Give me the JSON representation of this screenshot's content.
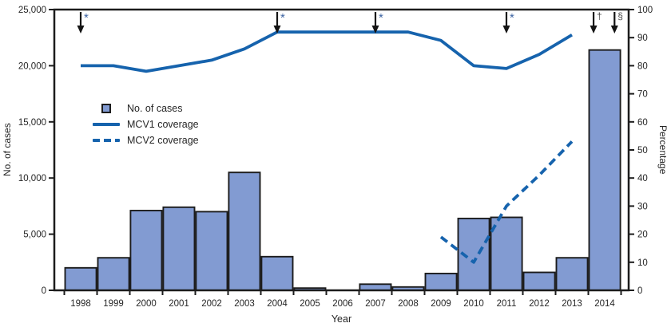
{
  "chart_data": {
    "type": "bar",
    "subtype": "combo-bar-line",
    "categories": [
      "1998",
      "1999",
      "2000",
      "2001",
      "2002",
      "2003",
      "2004",
      "2005",
      "2006",
      "2007",
      "2008",
      "2009",
      "2010",
      "2011",
      "2012",
      "2013",
      "2014"
    ],
    "series": [
      {
        "name": "No. of cases",
        "type": "bar",
        "axis": "left",
        "values": [
          2000,
          2900,
          7100,
          7400,
          7000,
          10500,
          3000,
          200,
          0,
          550,
          300,
          1500,
          6400,
          6500,
          1600,
          2900,
          21400
        ]
      },
      {
        "name": "MCV1 coverage",
        "type": "line",
        "style": "solid",
        "axis": "right",
        "values": [
          80,
          80,
          78,
          80,
          82,
          86,
          92,
          92,
          92,
          92,
          92,
          89,
          80,
          79,
          84,
          91,
          null
        ]
      },
      {
        "name": "MCV2 coverage",
        "type": "line",
        "style": "dashed",
        "axis": "right",
        "values": [
          null,
          null,
          null,
          null,
          null,
          null,
          null,
          null,
          null,
          null,
          null,
          19,
          10,
          30,
          41,
          53,
          null
        ]
      }
    ],
    "left_axis": {
      "label": "No. of cases",
      "min": 0,
      "max": 25000,
      "tick_labels": [
        "0",
        "5,000",
        "10,000",
        "15,000",
        "20,000",
        "25,000"
      ]
    },
    "right_axis": {
      "label": "Percentage",
      "min": 0,
      "max": 100,
      "tick_labels": [
        "0",
        "10",
        "20",
        "30",
        "40",
        "50",
        "60",
        "70",
        "80",
        "90",
        "100"
      ]
    },
    "x_axis": {
      "label": "Year"
    },
    "grid": false,
    "legend_position": "upper-left-inside",
    "annotations": [
      {
        "x": 1998,
        "symbol": "*",
        "color": "#3d64a3"
      },
      {
        "x": 2004,
        "symbol": "*",
        "color": "#3d64a3"
      },
      {
        "x": 2007,
        "symbol": "*",
        "color": "#3d64a3"
      },
      {
        "x": 2011,
        "symbol": "*",
        "color": "#3d64a3"
      },
      {
        "x": 2013.66,
        "symbol": "†",
        "color": "#4a4a4a"
      },
      {
        "x": 2014.3,
        "symbol": "§",
        "color": "#4a4a4a"
      }
    ],
    "legend": [
      {
        "label": "No. of cases",
        "swatch": "bar"
      },
      {
        "label": "MCV1 coverage",
        "swatch": "solid-line"
      },
      {
        "label": "MCV2 coverage",
        "swatch": "dashed-line"
      }
    ]
  },
  "colors": {
    "bar_fill": "#829bd2",
    "bar_border": "#1c1c1c",
    "line_blue": "#1663ad",
    "axis": "#1c1c1c",
    "text": "#262626",
    "arrow": "#141414"
  }
}
